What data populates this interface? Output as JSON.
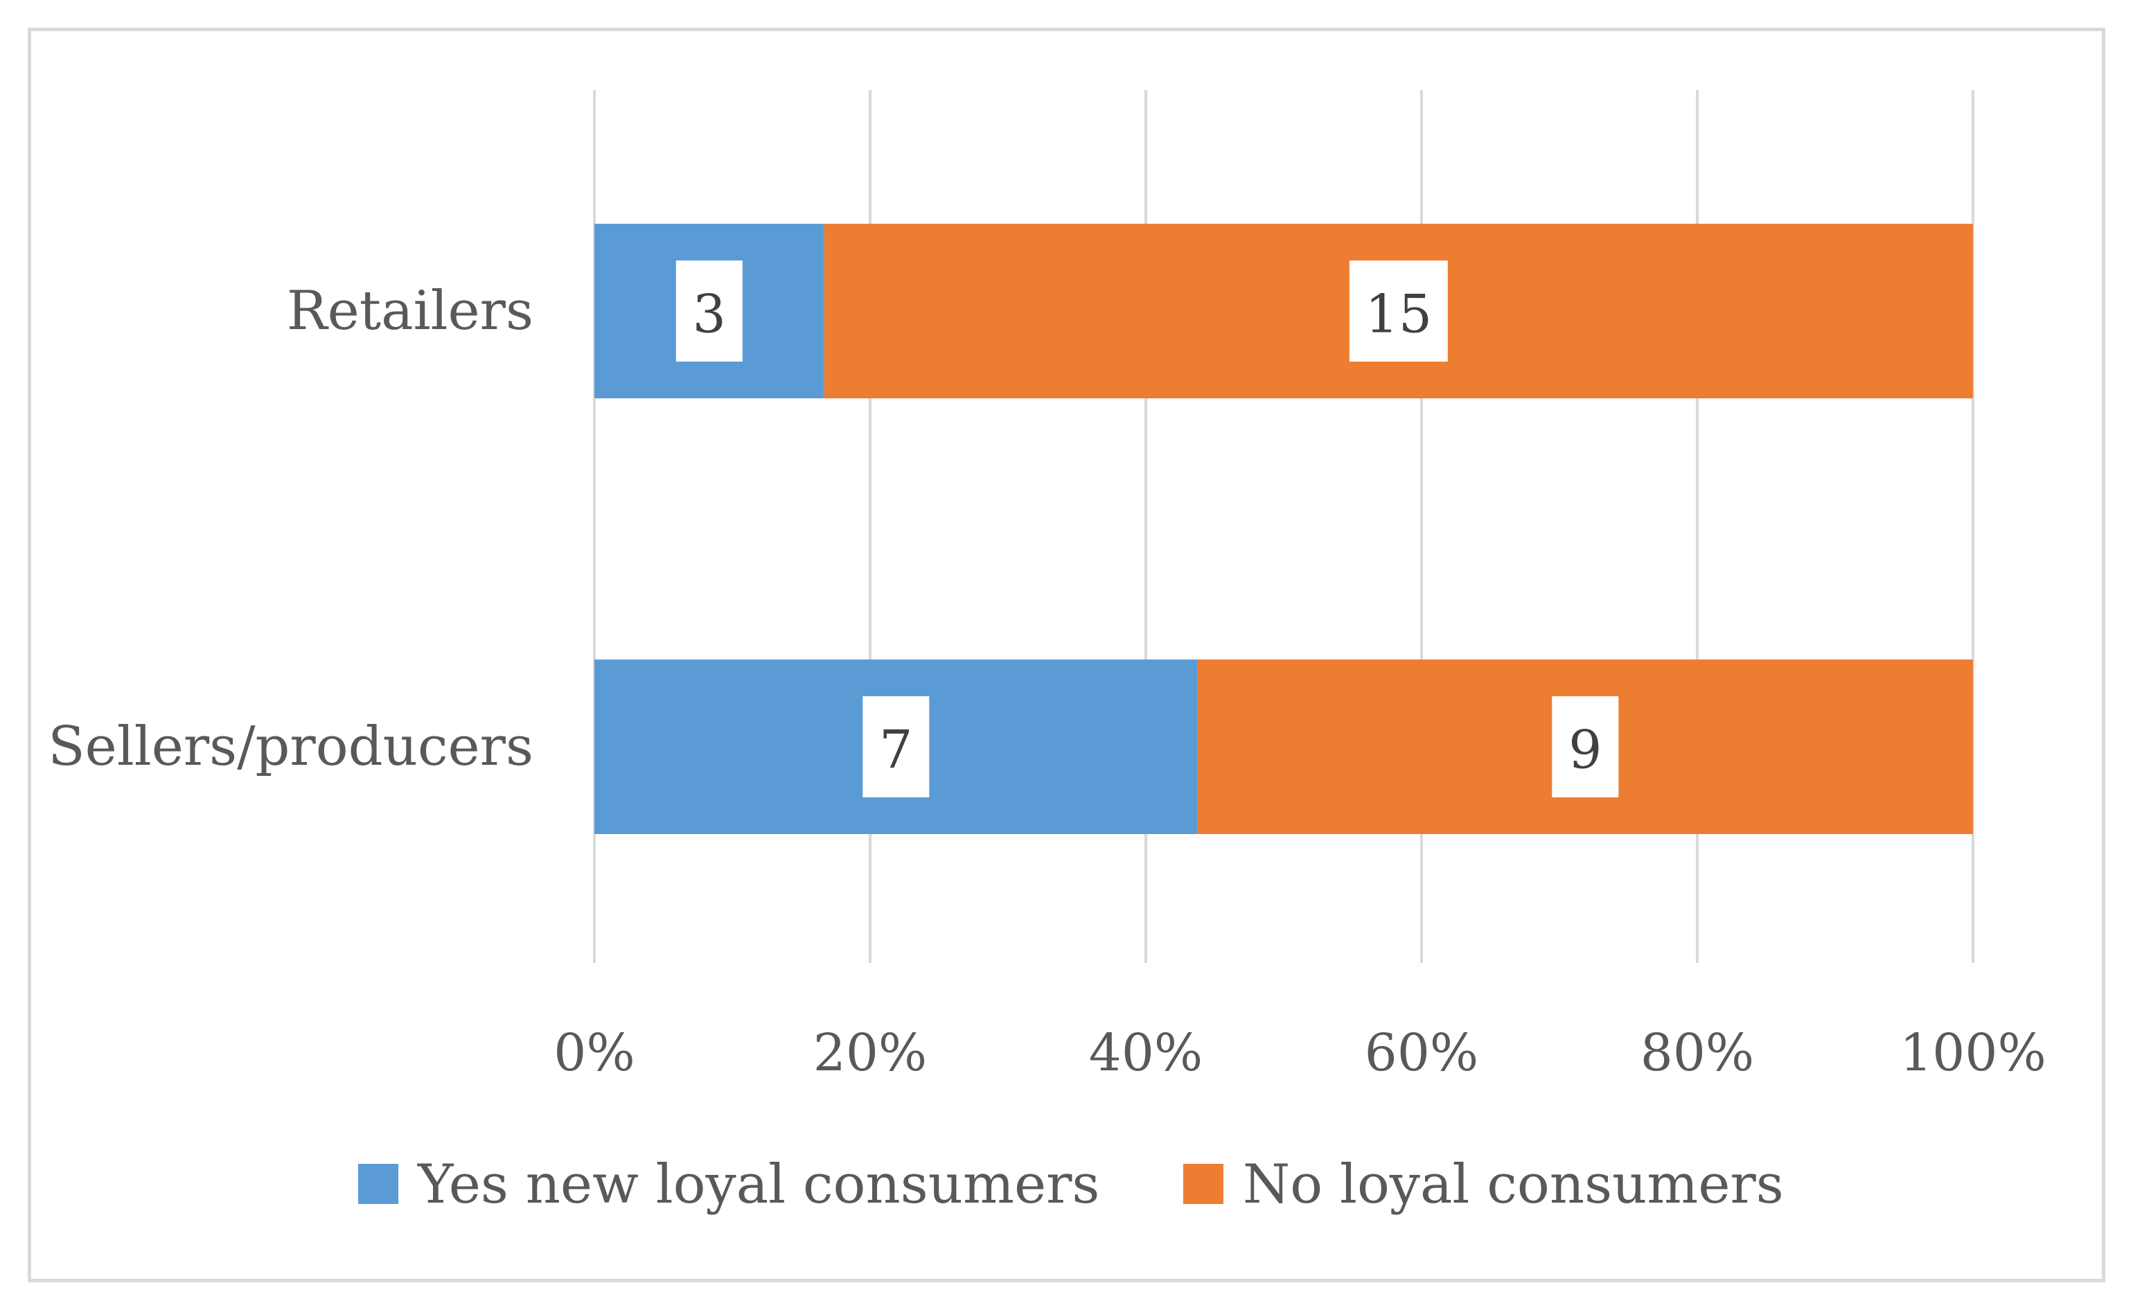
{
  "chart_data": {
    "type": "bar",
    "orientation": "horizontal",
    "stacked": "percent",
    "title": "",
    "xlabel": "",
    "ylabel": "",
    "categories": [
      "Retailers",
      "Sellers/producers"
    ],
    "series": [
      {
        "name": "Yes new loyal consumers",
        "values": [
          3,
          7
        ],
        "color": "#5b9bd5"
      },
      {
        "name": "No loyal consumers",
        "values": [
          15,
          9
        ],
        "color": "#ed7d31"
      }
    ],
    "xlim": [
      0,
      100
    ],
    "xticks": [
      0,
      20,
      40,
      60,
      80,
      100
    ],
    "xtick_labels": [
      "0%",
      "20%",
      "40%",
      "60%",
      "80%",
      "100%"
    ],
    "grid": "vertical",
    "legend_position": "bottom",
    "data_labels": true
  }
}
